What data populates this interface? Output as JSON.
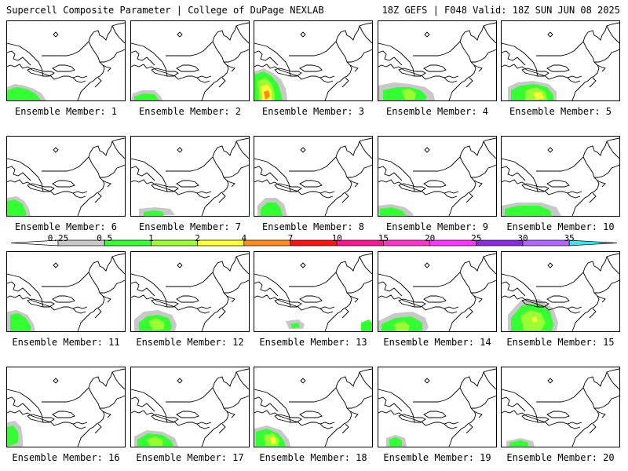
{
  "header": {
    "title_left": "Supercell Composite Parameter | College of DuPage NEXLAB",
    "title_right": "18Z GEFS | F048 Valid: 18Z SUN JUN 08 2025"
  },
  "panels": [
    {
      "label": "Ensemble Member: 1"
    },
    {
      "label": "Ensemble Member: 2"
    },
    {
      "label": "Ensemble Member: 3"
    },
    {
      "label": "Ensemble Member: 4"
    },
    {
      "label": "Ensemble Member: 5"
    },
    {
      "label": "Ensemble Member: 6"
    },
    {
      "label": "Ensemble Member: 7"
    },
    {
      "label": "Ensemble Member: 8"
    },
    {
      "label": "Ensemble Member: 9"
    },
    {
      "label": "Ensemble Member: 10"
    },
    {
      "label": "Ensemble Member: 11"
    },
    {
      "label": "Ensemble Member: 12"
    },
    {
      "label": "Ensemble Member: 13"
    },
    {
      "label": "Ensemble Member: 14"
    },
    {
      "label": "Ensemble Member: 15"
    },
    {
      "label": "Ensemble Member: 16"
    },
    {
      "label": "Ensemble Member: 17"
    },
    {
      "label": "Ensemble Member: 18"
    },
    {
      "label": "Ensemble Member: 19"
    },
    {
      "label": "Ensemble Member: 20"
    }
  ],
  "colorbar": {
    "levels": [
      "0.25",
      "0.5",
      "1",
      "2",
      "4",
      "7",
      "10",
      "15",
      "20",
      "25",
      "30",
      "35"
    ],
    "colors": [
      "#c8c8c8",
      "#33ff33",
      "#99ff33",
      "#ffff33",
      "#ff8c1a",
      "#ff1111",
      "#ff1493",
      "#ff33cc",
      "#ff33ff",
      "#8a2be2",
      "#b266ff",
      "#33e6f0"
    ]
  }
}
